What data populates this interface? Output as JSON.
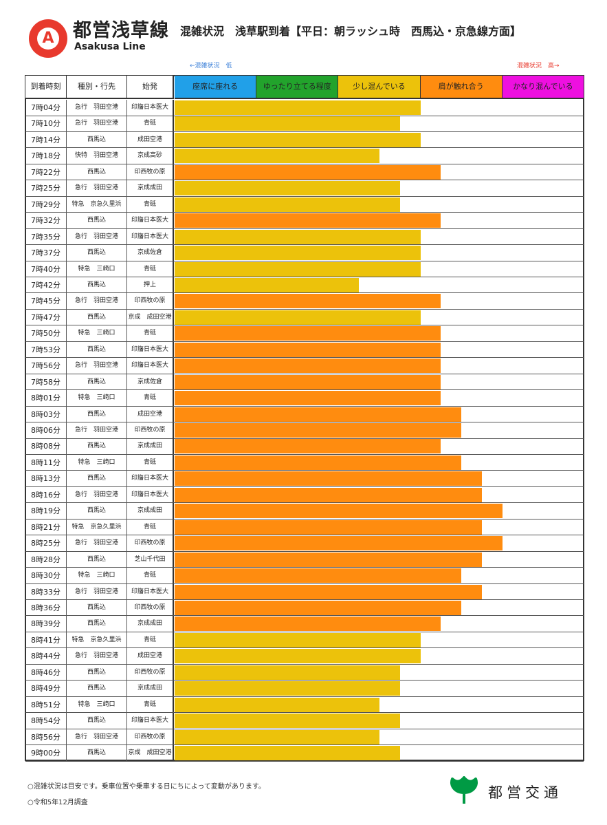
{
  "header": {
    "logo_letter": "A",
    "line_name": "都営浅草線",
    "line_name_en": "Asakusa Line",
    "title": "混雑状況　浅草駅到着【平日：朝ラッシュ時　西馬込・京急線方面】"
  },
  "scale": {
    "low_label": "←混雑状況　低",
    "high_label": "混雑状況　高→"
  },
  "columns": {
    "time": "到着時刻",
    "type_dest": "種別・行先",
    "origin": "始発"
  },
  "levels": [
    {
      "label": "座席に座れる",
      "color": "#21a0e8"
    },
    {
      "label": "ゆったり立てる程度",
      "color": "#22a32c"
    },
    {
      "label": "少し混んでいる",
      "color": "#ecc20b"
    },
    {
      "label": "肩が触れ合う",
      "color": "#ff8c0f"
    },
    {
      "label": "かなり混んでいる",
      "color": "#ee10e0"
    }
  ],
  "chart_data": {
    "type": "bar",
    "orientation": "horizontal",
    "value_unit": "混雑状況 level (1=座席に座れる … 5=かなり混んでいる)",
    "xlim": [
      0,
      5
    ],
    "rows": [
      {
        "time": "7時04分",
        "type_dest": "急行　羽田空港",
        "origin": "印旛日本医大",
        "level": 3.0,
        "color_level": 3
      },
      {
        "time": "7時10分",
        "type_dest": "急行　羽田空港",
        "origin": "青砥",
        "level": 2.75,
        "color_level": 3
      },
      {
        "time": "7時14分",
        "type_dest": "西馬込",
        "origin": "成田空港",
        "level": 3.0,
        "color_level": 3
      },
      {
        "time": "7時18分",
        "type_dest": "快特　羽田空港",
        "origin": "京成高砂",
        "level": 2.5,
        "color_level": 3
      },
      {
        "time": "7時22分",
        "type_dest": "西馬込",
        "origin": "印西牧の原",
        "level": 3.25,
        "color_level": 4
      },
      {
        "time": "7時25分",
        "type_dest": "急行　羽田空港",
        "origin": "京成成田",
        "level": 2.75,
        "color_level": 3
      },
      {
        "time": "7時29分",
        "type_dest": "特急　京急久里浜",
        "origin": "青砥",
        "level": 2.75,
        "color_level": 3
      },
      {
        "time": "7時32分",
        "type_dest": "西馬込",
        "origin": "印旛日本医大",
        "level": 3.25,
        "color_level": 4
      },
      {
        "time": "7時35分",
        "type_dest": "急行　羽田空港",
        "origin": "印旛日本医大",
        "level": 3.0,
        "color_level": 3
      },
      {
        "time": "7時37分",
        "type_dest": "西馬込",
        "origin": "京成佐倉",
        "level": 3.0,
        "color_level": 3
      },
      {
        "time": "7時40分",
        "type_dest": "特急　三崎口",
        "origin": "青砥",
        "level": 3.0,
        "color_level": 3
      },
      {
        "time": "7時42分",
        "type_dest": "西馬込",
        "origin": "押上",
        "level": 2.25,
        "color_level": 3
      },
      {
        "time": "7時45分",
        "type_dest": "急行　羽田空港",
        "origin": "印西牧の原",
        "level": 3.25,
        "color_level": 4
      },
      {
        "time": "7時47分",
        "type_dest": "西馬込",
        "origin": "京成　成田空港",
        "level": 3.0,
        "color_level": 3
      },
      {
        "time": "7時50分",
        "type_dest": "特急　三崎口",
        "origin": "青砥",
        "level": 3.25,
        "color_level": 4
      },
      {
        "time": "7時53分",
        "type_dest": "西馬込",
        "origin": "印旛日本医大",
        "level": 3.25,
        "color_level": 4
      },
      {
        "time": "7時56分",
        "type_dest": "急行　羽田空港",
        "origin": "印旛日本医大",
        "level": 3.25,
        "color_level": 4
      },
      {
        "time": "7時58分",
        "type_dest": "西馬込",
        "origin": "京成佐倉",
        "level": 3.25,
        "color_level": 4
      },
      {
        "time": "8時01分",
        "type_dest": "特急　三崎口",
        "origin": "青砥",
        "level": 3.25,
        "color_level": 4
      },
      {
        "time": "8時03分",
        "type_dest": "西馬込",
        "origin": "成田空港",
        "level": 3.5,
        "color_level": 4
      },
      {
        "time": "8時06分",
        "type_dest": "急行　羽田空港",
        "origin": "印西牧の原",
        "level": 3.5,
        "color_level": 4
      },
      {
        "time": "8時08分",
        "type_dest": "西馬込",
        "origin": "京成成田",
        "level": 3.25,
        "color_level": 4
      },
      {
        "time": "8時11分",
        "type_dest": "特急　三崎口",
        "origin": "青砥",
        "level": 3.5,
        "color_level": 4
      },
      {
        "time": "8時13分",
        "type_dest": "西馬込",
        "origin": "印旛日本医大",
        "level": 3.75,
        "color_level": 4
      },
      {
        "time": "8時16分",
        "type_dest": "急行　羽田空港",
        "origin": "印旛日本医大",
        "level": 3.75,
        "color_level": 4
      },
      {
        "time": "8時19分",
        "type_dest": "西馬込",
        "origin": "京成成田",
        "level": 4.0,
        "color_level": 4
      },
      {
        "time": "8時21分",
        "type_dest": "特急　京急久里浜",
        "origin": "青砥",
        "level": 3.75,
        "color_level": 4
      },
      {
        "time": "8時25分",
        "type_dest": "急行　羽田空港",
        "origin": "印西牧の原",
        "level": 4.0,
        "color_level": 4
      },
      {
        "time": "8時28分",
        "type_dest": "西馬込",
        "origin": "芝山千代田",
        "level": 3.75,
        "color_level": 4
      },
      {
        "time": "8時30分",
        "type_dest": "特急　三崎口",
        "origin": "青砥",
        "level": 3.5,
        "color_level": 4
      },
      {
        "time": "8時33分",
        "type_dest": "急行　羽田空港",
        "origin": "印旛日本医大",
        "level": 3.75,
        "color_level": 4
      },
      {
        "time": "8時36分",
        "type_dest": "西馬込",
        "origin": "印西牧の原",
        "level": 3.5,
        "color_level": 4
      },
      {
        "time": "8時39分",
        "type_dest": "西馬込",
        "origin": "京成成田",
        "level": 3.25,
        "color_level": 4
      },
      {
        "time": "8時41分",
        "type_dest": "特急　京急久里浜",
        "origin": "青砥",
        "level": 3.0,
        "color_level": 3
      },
      {
        "time": "8時44分",
        "type_dest": "急行　羽田空港",
        "origin": "成田空港",
        "level": 3.0,
        "color_level": 3
      },
      {
        "time": "8時46分",
        "type_dest": "西馬込",
        "origin": "印西牧の原",
        "level": 2.75,
        "color_level": 3
      },
      {
        "time": "8時49分",
        "type_dest": "西馬込",
        "origin": "京成成田",
        "level": 2.75,
        "color_level": 3
      },
      {
        "time": "8時51分",
        "type_dest": "特急　三崎口",
        "origin": "青砥",
        "level": 2.5,
        "color_level": 3
      },
      {
        "time": "8時54分",
        "type_dest": "西馬込",
        "origin": "印旛日本医大",
        "level": 2.75,
        "color_level": 3
      },
      {
        "time": "8時56分",
        "type_dest": "急行　羽田空港",
        "origin": "印西牧の原",
        "level": 2.5,
        "color_level": 3
      },
      {
        "time": "9時00分",
        "type_dest": "西馬込",
        "origin": "京成　成田空港",
        "level": 2.75,
        "color_level": 3
      }
    ]
  },
  "footer": {
    "note1": "○混雑状況は目安です。乗車位置や乗車する日にちによって変動があります。",
    "note2": "○令和5年12月調査",
    "operator": "都営交通",
    "operator_logo_color": "#009a44"
  }
}
